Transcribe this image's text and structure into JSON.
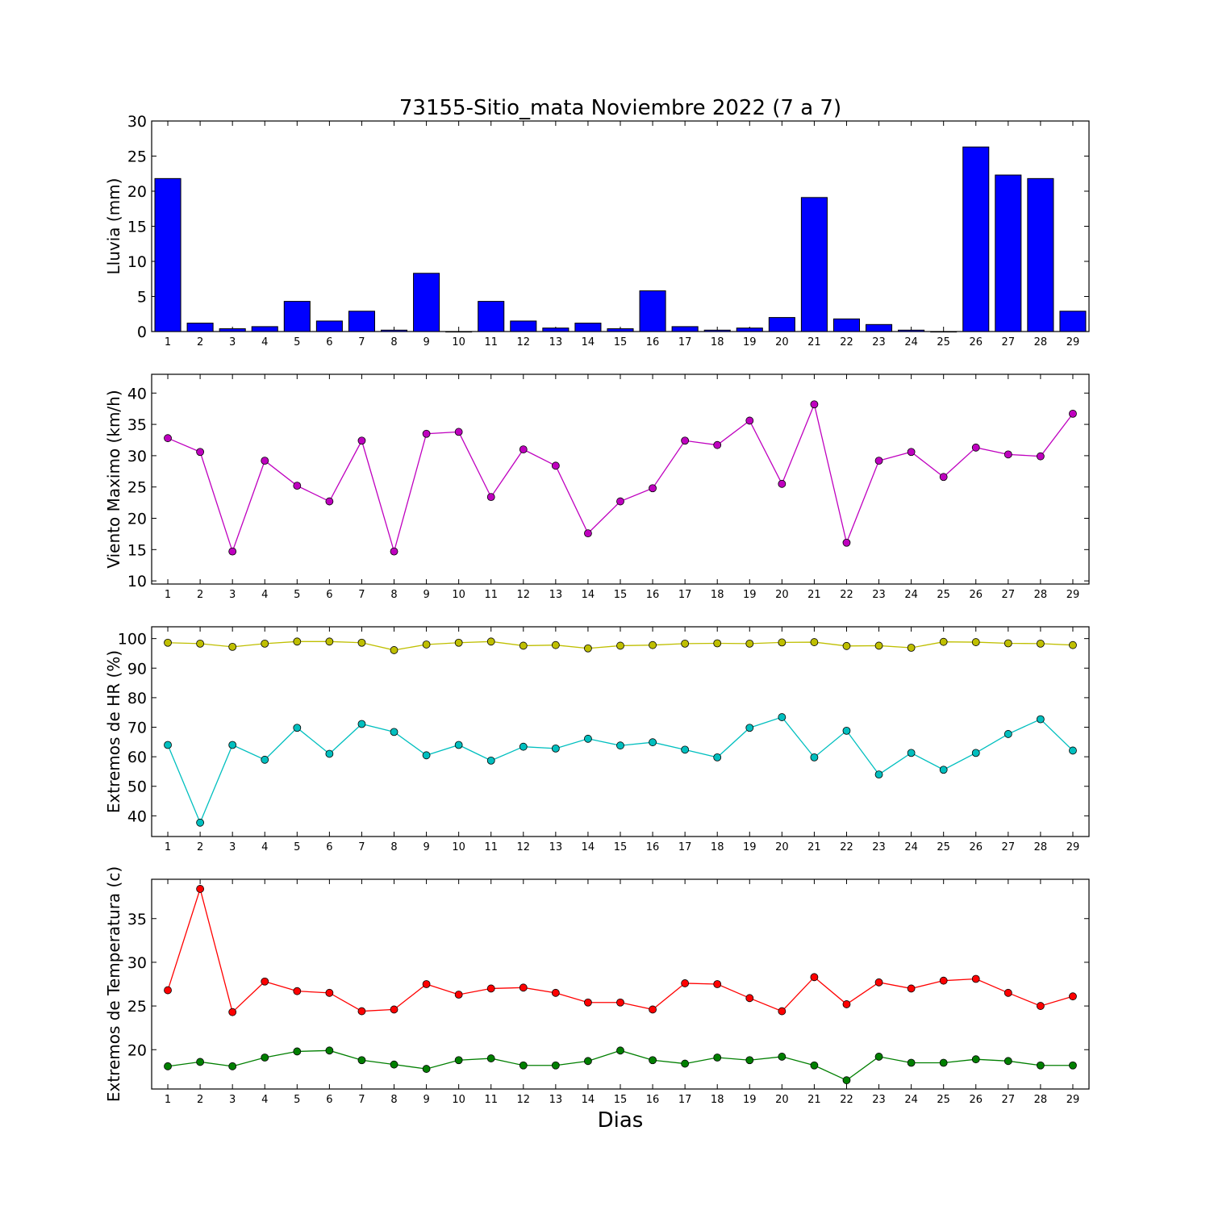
{
  "figure": {
    "title": "73155-Sitio_mata Noviembre 2022  (7 a 7)",
    "xlabel": "Dias"
  },
  "chart_data": [
    {
      "type": "bar",
      "ylabel": "Lluvia (mm)",
      "ylim": [
        0,
        30
      ],
      "yticks": [
        0,
        5,
        10,
        15,
        20,
        25,
        30
      ],
      "categories": [
        "1",
        "2",
        "3",
        "4",
        "5",
        "6",
        "7",
        "8",
        "9",
        "10",
        "11",
        "12",
        "13",
        "14",
        "15",
        "16",
        "17",
        "18",
        "19",
        "20",
        "21",
        "22",
        "23",
        "24",
        "25",
        "26",
        "27",
        "28",
        "29"
      ],
      "series": [
        {
          "color": "#0000ff",
          "values": [
            21.8,
            1.2,
            0.4,
            0.7,
            4.3,
            1.5,
            2.9,
            0.2,
            8.3,
            0.0,
            4.3,
            1.5,
            0.5,
            1.2,
            0.4,
            5.8,
            0.7,
            0.2,
            0.5,
            2.0,
            19.1,
            1.8,
            1.0,
            0.2,
            0.0,
            26.3,
            22.3,
            21.8,
            2.9
          ]
        }
      ]
    },
    {
      "type": "line",
      "ylabel": "Viento Maximo (km/h)",
      "ylim": [
        9.5,
        43
      ],
      "yticks": [
        10,
        15,
        20,
        25,
        30,
        35,
        40
      ],
      "categories": [
        "1",
        "2",
        "3",
        "4",
        "5",
        "6",
        "7",
        "8",
        "9",
        "10",
        "11",
        "12",
        "13",
        "14",
        "15",
        "16",
        "17",
        "18",
        "19",
        "20",
        "21",
        "22",
        "23",
        "24",
        "25",
        "26",
        "27",
        "28",
        "29"
      ],
      "series": [
        {
          "color": "#bf00bf",
          "values": [
            32.8,
            30.6,
            14.7,
            29.2,
            25.2,
            22.7,
            32.4,
            14.7,
            33.5,
            33.8,
            23.4,
            31.0,
            28.4,
            17.6,
            22.7,
            24.8,
            32.4,
            31.7,
            35.6,
            25.5,
            38.2,
            16.1,
            29.2,
            30.6,
            26.6,
            31.3,
            30.2,
            29.9,
            36.7
          ]
        }
      ]
    },
    {
      "type": "line",
      "ylabel": "Extremos de HR (%)",
      "ylim": [
        33,
        104
      ],
      "yticks": [
        40,
        50,
        60,
        70,
        80,
        90,
        100
      ],
      "categories": [
        "1",
        "2",
        "3",
        "4",
        "5",
        "6",
        "7",
        "8",
        "9",
        "10",
        "11",
        "12",
        "13",
        "14",
        "15",
        "16",
        "17",
        "18",
        "19",
        "20",
        "21",
        "22",
        "23",
        "24",
        "25",
        "26",
        "27",
        "28",
        "29"
      ],
      "series": [
        {
          "color": "#bfbf00",
          "values": [
            98.6,
            98.3,
            97.2,
            98.3,
            99.0,
            99.0,
            98.6,
            96.1,
            98.0,
            98.6,
            99.0,
            97.6,
            97.8,
            96.7,
            97.6,
            97.8,
            98.3,
            98.4,
            98.3,
            98.7,
            98.8,
            97.5,
            97.6,
            96.9,
            98.9,
            98.8,
            98.4,
            98.3,
            97.8
          ]
        },
        {
          "color": "#00bfbf",
          "values": [
            64.0,
            37.7,
            64.0,
            59.0,
            69.8,
            61.0,
            71.1,
            68.4,
            60.5,
            64.0,
            58.7,
            63.4,
            62.8,
            66.1,
            63.8,
            64.9,
            62.4,
            59.8,
            69.8,
            73.4,
            59.8,
            68.8,
            54.0,
            61.3,
            55.6,
            61.3,
            67.7,
            72.7,
            62.1
          ]
        }
      ]
    },
    {
      "type": "line",
      "ylabel": "Extremos de Temperatura (c)",
      "ylim": [
        15.5,
        39.5
      ],
      "yticks": [
        20,
        25,
        30,
        35
      ],
      "categories": [
        "1",
        "2",
        "3",
        "4",
        "5",
        "6",
        "7",
        "8",
        "9",
        "10",
        "11",
        "12",
        "13",
        "14",
        "15",
        "16",
        "17",
        "18",
        "19",
        "20",
        "21",
        "22",
        "23",
        "24",
        "25",
        "26",
        "27",
        "28",
        "29"
      ],
      "series": [
        {
          "color": "#ff0000",
          "values": [
            26.8,
            38.4,
            24.3,
            27.8,
            26.7,
            26.5,
            24.4,
            24.6,
            27.5,
            26.3,
            27.0,
            27.1,
            26.5,
            25.4,
            25.4,
            24.6,
            27.6,
            27.5,
            25.9,
            24.4,
            28.3,
            25.2,
            27.7,
            27.0,
            27.9,
            28.1,
            26.5,
            25.0,
            26.1
          ]
        },
        {
          "color": "#007f00",
          "values": [
            18.1,
            18.6,
            18.1,
            19.1,
            19.8,
            19.9,
            18.8,
            18.3,
            17.8,
            18.8,
            19.0,
            18.2,
            18.2,
            18.7,
            19.9,
            18.8,
            18.4,
            19.1,
            18.8,
            19.2,
            18.2,
            16.5,
            19.2,
            18.5,
            18.5,
            18.9,
            18.7,
            18.2,
            18.2
          ]
        }
      ]
    }
  ]
}
